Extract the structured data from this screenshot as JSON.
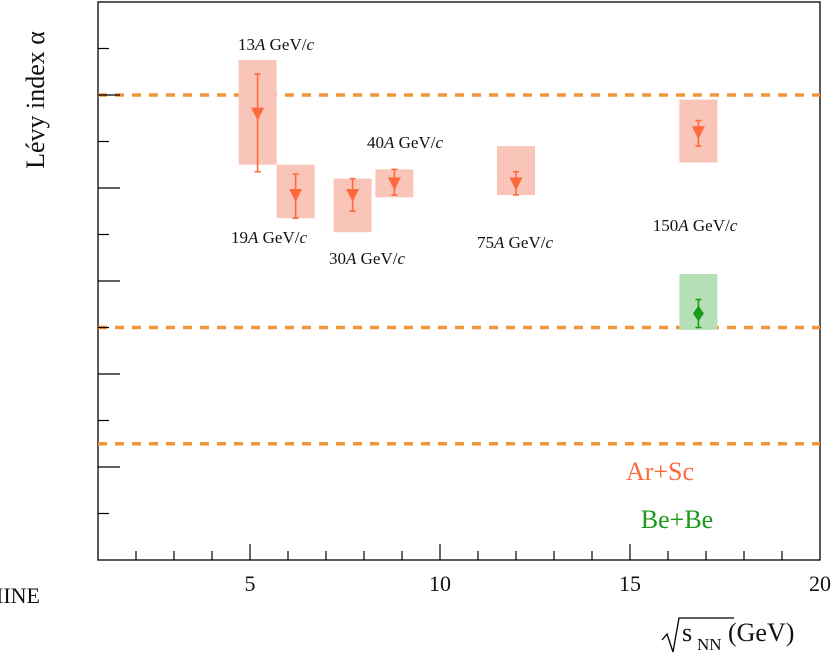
{
  "chart_data": {
    "type": "scatter",
    "title": "",
    "ylabel": "Lévy index α",
    "xlabel_sqrt": "s",
    "xlabel_sub": "NN",
    "xlabel_unit": " (GeV)",
    "corner_text": "IINE",
    "xlim": [
      1,
      20
    ],
    "ylim": [
      0,
      2.4
    ],
    "x_ticks": [
      5,
      10,
      15,
      20
    ],
    "y_tick_labels_visible": false,
    "grid": false,
    "reference_lines": [
      2.0,
      1.0,
      0.5
    ],
    "reference_line_color": "#f0953a",
    "series": [
      {
        "name": "Ar+Sc",
        "color": "#ff6a3d",
        "marker": "triangle-down",
        "box_color": "#f8c5b8",
        "points": [
          {
            "x": 5.2,
            "y": 1.92,
            "err_lo": 0.25,
            "err_hi": 0.17,
            "sys_lo": 0.22,
            "sys_hi": 0.23,
            "label": "13A GeV/c"
          },
          {
            "x": 6.2,
            "y": 1.57,
            "err_lo": 0.1,
            "err_hi": 0.09,
            "sys_lo": 0.1,
            "sys_hi": 0.13,
            "label": "19A GeV/c"
          },
          {
            "x": 7.7,
            "y": 1.57,
            "err_lo": 0.07,
            "err_hi": 0.07,
            "sys_lo": 0.16,
            "sys_hi": 0.07,
            "label": "30A GeV/c"
          },
          {
            "x": 8.8,
            "y": 1.62,
            "err_lo": 0.05,
            "err_hi": 0.06,
            "sys_lo": 0.06,
            "sys_hi": 0.06,
            "label": "40A GeV/c"
          },
          {
            "x": 12.0,
            "y": 1.62,
            "err_lo": 0.05,
            "err_hi": 0.05,
            "sys_lo": 0.05,
            "sys_hi": 0.16,
            "label": "75A GeV/c"
          },
          {
            "x": 16.8,
            "y": 1.84,
            "err_lo": 0.06,
            "err_hi": 0.05,
            "sys_lo": 0.13,
            "sys_hi": 0.14,
            "label": "150A GeV/c"
          }
        ]
      },
      {
        "name": "Be+Be",
        "color": "#1c9a1c",
        "marker": "diamond",
        "box_color": "#b5e0b5",
        "points": [
          {
            "x": 16.8,
            "y": 1.06,
            "err_lo": 0.06,
            "err_hi": 0.06,
            "sys_lo": 0.07,
            "sys_hi": 0.17
          }
        ]
      }
    ],
    "annotations": [
      {
        "prefix": "13",
        "italic": "A",
        "mid": " GeV/",
        "italic2": "c"
      },
      {
        "prefix": "19",
        "italic": "A",
        "mid": " GeV/",
        "italic2": "c"
      },
      {
        "prefix": "30",
        "italic": "A",
        "mid": " GeV/",
        "italic2": "c"
      },
      {
        "prefix": "40",
        "italic": "A",
        "mid": " GeV/",
        "italic2": "c"
      },
      {
        "prefix": "75",
        "italic": "A",
        "mid": " GeV/",
        "italic2": "c"
      },
      {
        "prefix": "150",
        "italic": "A",
        "mid": " GeV/",
        "italic2": "c"
      }
    ],
    "legend": {
      "placement": "bottom-right",
      "entries": [
        "Ar+Sc",
        "Be+Be"
      ]
    }
  }
}
